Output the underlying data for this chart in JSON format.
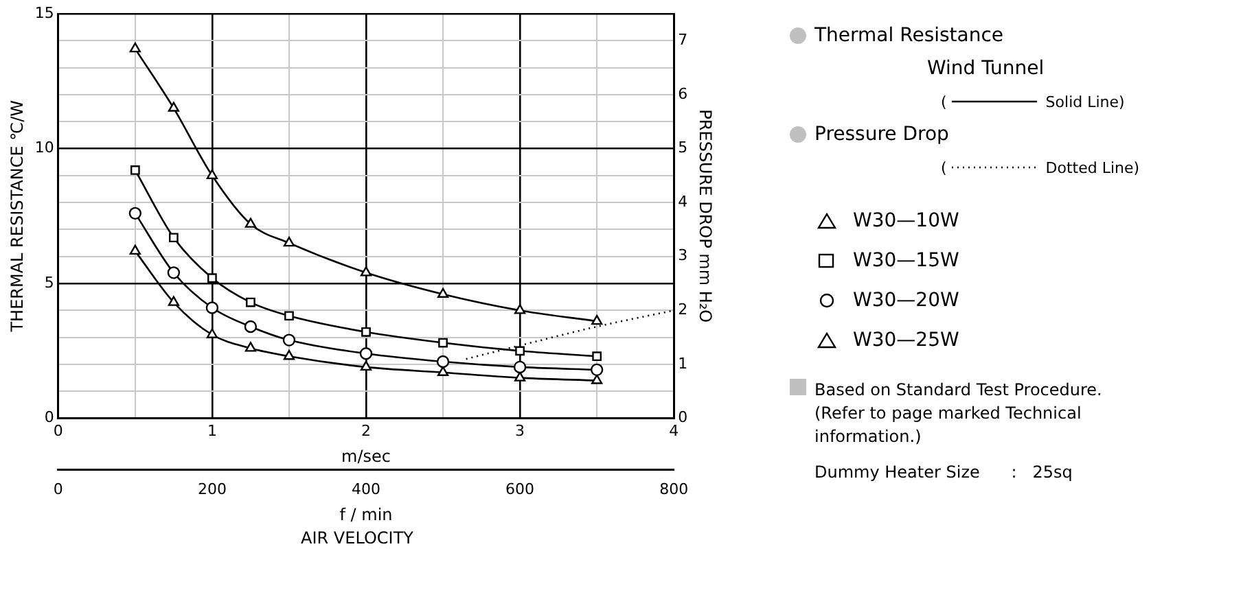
{
  "chart_data": {
    "type": "line",
    "xlabel": "m/sec",
    "x2label": "f / min",
    "ylabel": "THERMAL RESISTANCE ℃/W",
    "y2label": "PRESSURE DROP mm H₂O",
    "xlim": [
      0,
      4
    ],
    "xticks": [
      0,
      {
        "value": 0.5,
        "label": null
      },
      1,
      {
        "value": 1.5,
        "label": null
      },
      2,
      {
        "value": 2.5,
        "label": null
      },
      3,
      {
        "value": 3.5,
        "label": null
      },
      4
    ],
    "x2lim": [
      0,
      800
    ],
    "x2ticks": [
      0,
      200,
      400,
      600,
      800
    ],
    "ylim": [
      0,
      15
    ],
    "yticks": [
      0,
      {
        "value": 1,
        "label": null
      },
      {
        "value": 2,
        "label": null
      },
      {
        "value": 3,
        "label": null
      },
      {
        "value": 4,
        "label": null
      },
      5,
      {
        "value": 6,
        "label": null
      },
      {
        "value": 7,
        "label": null
      },
      {
        "value": 8,
        "label": null
      },
      {
        "value": 9,
        "label": null
      },
      10,
      {
        "value": 11,
        "label": null
      },
      {
        "value": 12,
        "label": null
      },
      {
        "value": 13,
        "label": null
      },
      {
        "value": 14,
        "label": null
      },
      15
    ],
    "y2lim": [
      0,
      7.5
    ],
    "y2ticks": [
      0,
      1,
      2,
      3,
      4,
      5,
      6,
      7
    ],
    "grid": true,
    "legend": "right",
    "line_style": "solid",
    "series": [
      {
        "name": "W30—10W",
        "color": "#000000",
        "marker": "triangle",
        "x": [
          0.5,
          0.75,
          1,
          1.25,
          1.5,
          2,
          2.5,
          3,
          3.5
        ],
        "values": [
          13.7,
          11.5,
          9.0,
          7.2,
          6.5,
          5.4,
          4.6,
          4.0,
          3.6
        ]
      },
      {
        "name": "W30—15W",
        "color": "#000000",
        "marker": "square",
        "x": [
          0.5,
          0.75,
          1,
          1.25,
          1.5,
          2,
          2.5,
          3,
          3.5
        ],
        "values": [
          9.2,
          6.7,
          5.2,
          4.3,
          3.8,
          3.2,
          2.8,
          2.5,
          2.3
        ]
      },
      {
        "name": "W30—20W",
        "color": "#000000",
        "marker": "circle",
        "x": [
          0.5,
          0.75,
          1,
          1.25,
          1.5,
          2,
          2.5,
          3,
          3.5
        ],
        "values": [
          7.6,
          5.4,
          4.1,
          3.4,
          2.9,
          2.4,
          2.1,
          1.9,
          1.8
        ]
      },
      {
        "name": "W30—25W",
        "color": "#000000",
        "marker": "triangle",
        "x": [
          0.5,
          0.75,
          1,
          1.25,
          1.5,
          2,
          2.5,
          3,
          3.5
        ],
        "values": [
          6.2,
          4.3,
          3.1,
          2.6,
          2.3,
          1.9,
          1.7,
          1.5,
          1.4
        ]
      },
      {
        "name": "Pressure Drop",
        "color": "#000000",
        "axis": "y2",
        "line_style": "dotted",
        "marker": "none",
        "x": [
          2.65,
          3,
          3.5,
          4
        ],
        "values": [
          1.1,
          1.35,
          1.7,
          2.0
        ]
      }
    ],
    "annotations": [
      "AIR VELOCITY",
      "Thermal Resistance",
      "Wind Tunnel",
      "(",
      "Solid Line)",
      "(",
      "Dotted Line)",
      "Based on Standard Test Procedure. (Refer to page marked Technical information.)",
      "Dummy Heater Size      :   25sq"
    ]
  }
}
